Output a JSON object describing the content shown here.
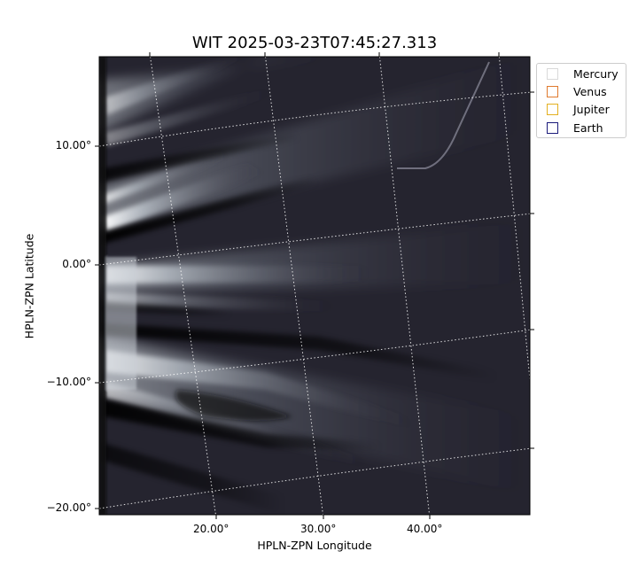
{
  "title": "WIT 2025-03-23T07:45:27.313",
  "x_axis": {
    "label": "HPLN-ZPN Longitude",
    "ticks": [
      "20.00°",
      "30.00°",
      "40.00°"
    ]
  },
  "y_axis": {
    "label": "HPLN-ZPN Latitude",
    "ticks": [
      "10.00°",
      "0.00°",
      "−10.00°",
      "−20.00°"
    ]
  },
  "legend": {
    "items": [
      {
        "label": "Mercury",
        "color": "#d9d9d9"
      },
      {
        "label": "Venus",
        "color": "#e07a2e"
      },
      {
        "label": "Jupiter",
        "color": "#e3b020"
      },
      {
        "label": "Earth",
        "color": "#1a1a7a"
      }
    ]
  },
  "image": {
    "colormap": "bone",
    "grid": "dotted coordinate grid",
    "background_color": "#25242f"
  }
}
